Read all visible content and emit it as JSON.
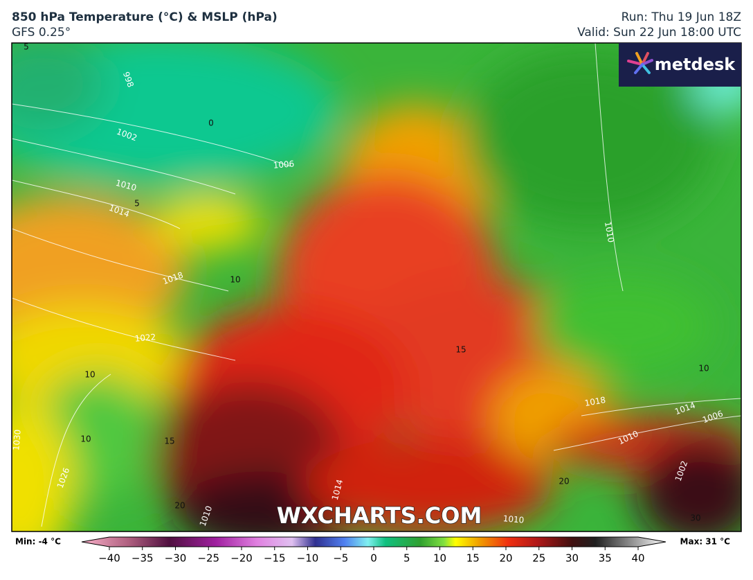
{
  "header": {
    "title": "850 hPa Temperature (°C) & MSLP (hPa)",
    "model": "GFS 0.25°",
    "run": "Run: Thu 19 Jun 18Z",
    "valid": "Valid: Sun 22 Jun 18:00 UTC"
  },
  "logo": "metdesk",
  "watermark": "WXCHARTS.COM",
  "map": {
    "isobar_labels": [
      998,
      1002,
      1006,
      1010,
      1014,
      1018,
      1022,
      1026,
      1030,
      1010,
      1018,
      1014,
      1006,
      1010,
      1002,
      1014,
      1010,
      1010
    ],
    "temperature_labels": [
      5,
      0,
      5,
      10,
      10,
      10,
      15,
      15,
      10,
      20,
      20,
      30
    ]
  },
  "legend": {
    "min": "Min: -4 °C",
    "max": "Max: 31 °C",
    "ticks": [
      {
        "value": -40,
        "label": "−40"
      },
      {
        "value": -35,
        "label": "−35"
      },
      {
        "value": -30,
        "label": "−30"
      },
      {
        "value": -25,
        "label": "−25"
      },
      {
        "value": -20,
        "label": "−20"
      },
      {
        "value": -15,
        "label": "−15"
      },
      {
        "value": -10,
        "label": "−10"
      },
      {
        "value": -5,
        "label": "−5"
      },
      0,
      5,
      10,
      15,
      20,
      25,
      30,
      35,
      40
    ]
  }
}
